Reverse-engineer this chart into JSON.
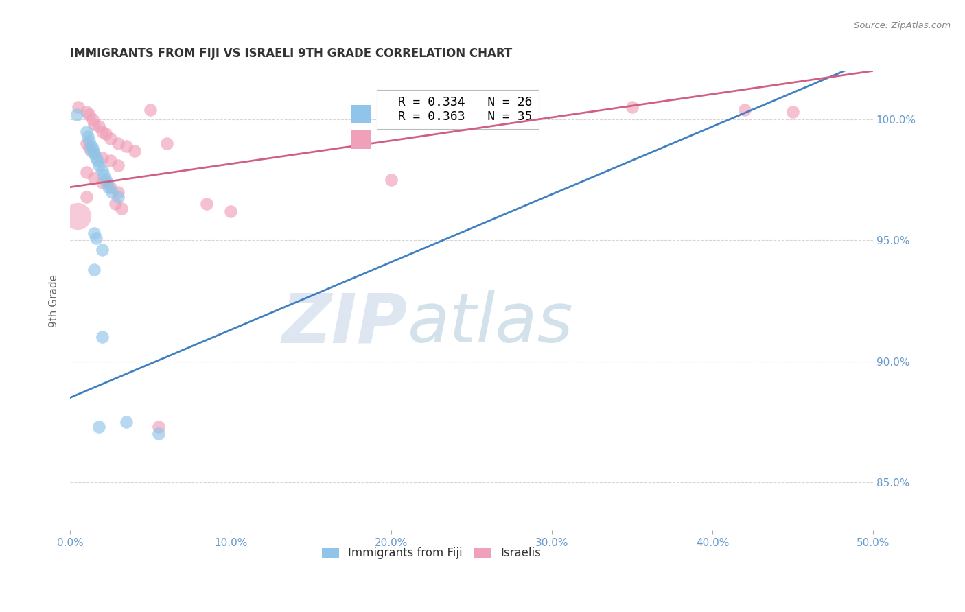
{
  "title": "IMMIGRANTS FROM FIJI VS ISRAELI 9TH GRADE CORRELATION CHART",
  "source": "Source: ZipAtlas.com",
  "ylabel_label": "9th Grade",
  "xmin": 0.0,
  "xmax": 50.0,
  "ymin": 83.0,
  "ymax": 102.0,
  "yticks": [
    85.0,
    90.0,
    95.0,
    100.0
  ],
  "xticks": [
    0.0,
    10.0,
    20.0,
    30.0,
    40.0,
    50.0
  ],
  "legend_blue_r": "R = 0.334",
  "legend_blue_n": "N = 26",
  "legend_pink_r": "R = 0.363",
  "legend_pink_n": "N = 35",
  "blue_color": "#90C4E8",
  "pink_color": "#F0A0B8",
  "blue_line_color": "#4080C0",
  "pink_line_color": "#D06080",
  "background_color": "#FFFFFF",
  "grid_color": "#CCCCCC",
  "title_color": "#333333",
  "axis_label_color": "#666666",
  "right_axis_color": "#6699CC",
  "blue_scatter": [
    [
      0.4,
      100.2
    ],
    [
      1.0,
      99.5
    ],
    [
      1.1,
      99.3
    ],
    [
      1.2,
      99.1
    ],
    [
      1.3,
      98.9
    ],
    [
      1.3,
      98.7
    ],
    [
      1.4,
      98.8
    ],
    [
      1.5,
      98.6
    ],
    [
      1.6,
      98.4
    ],
    [
      1.7,
      98.3
    ],
    [
      1.8,
      98.1
    ],
    [
      2.0,
      97.9
    ],
    [
      2.1,
      97.7
    ],
    [
      2.2,
      97.5
    ],
    [
      2.3,
      97.4
    ],
    [
      2.4,
      97.2
    ],
    [
      2.6,
      97.0
    ],
    [
      3.0,
      96.8
    ],
    [
      1.5,
      95.3
    ],
    [
      1.6,
      95.1
    ],
    [
      2.0,
      94.6
    ],
    [
      1.5,
      93.8
    ],
    [
      3.5,
      87.5
    ],
    [
      5.5,
      87.0
    ],
    [
      1.8,
      87.3
    ],
    [
      2.0,
      91.0
    ]
  ],
  "pink_scatter": [
    [
      0.5,
      100.5
    ],
    [
      1.0,
      100.3
    ],
    [
      1.2,
      100.2
    ],
    [
      1.4,
      100.0
    ],
    [
      1.5,
      99.8
    ],
    [
      1.8,
      99.7
    ],
    [
      2.0,
      99.5
    ],
    [
      2.2,
      99.4
    ],
    [
      2.5,
      99.2
    ],
    [
      3.0,
      99.0
    ],
    [
      3.5,
      98.9
    ],
    [
      4.0,
      98.7
    ],
    [
      1.0,
      99.0
    ],
    [
      1.2,
      98.8
    ],
    [
      1.5,
      98.6
    ],
    [
      2.0,
      98.4
    ],
    [
      2.5,
      98.3
    ],
    [
      3.0,
      98.1
    ],
    [
      1.0,
      97.8
    ],
    [
      1.5,
      97.6
    ],
    [
      2.0,
      97.4
    ],
    [
      2.5,
      97.2
    ],
    [
      3.0,
      97.0
    ],
    [
      5.0,
      100.4
    ],
    [
      6.0,
      99.0
    ],
    [
      8.5,
      96.5
    ],
    [
      10.0,
      96.2
    ],
    [
      5.5,
      87.3
    ],
    [
      35.0,
      100.5
    ],
    [
      42.0,
      100.4
    ],
    [
      45.0,
      100.3
    ],
    [
      20.0,
      97.5
    ],
    [
      1.0,
      96.8
    ],
    [
      2.8,
      96.5
    ],
    [
      3.2,
      96.3
    ]
  ],
  "blue_line_x": [
    0.0,
    50.0
  ],
  "blue_line_y": [
    88.5,
    102.5
  ],
  "pink_line_x": [
    0.0,
    50.0
  ],
  "pink_line_y": [
    97.2,
    102.0
  ],
  "watermark_zip": "ZIP",
  "watermark_atlas": "atlas",
  "large_pink_x": 0.45,
  "large_pink_y": 96.0,
  "large_pink_size": 800
}
